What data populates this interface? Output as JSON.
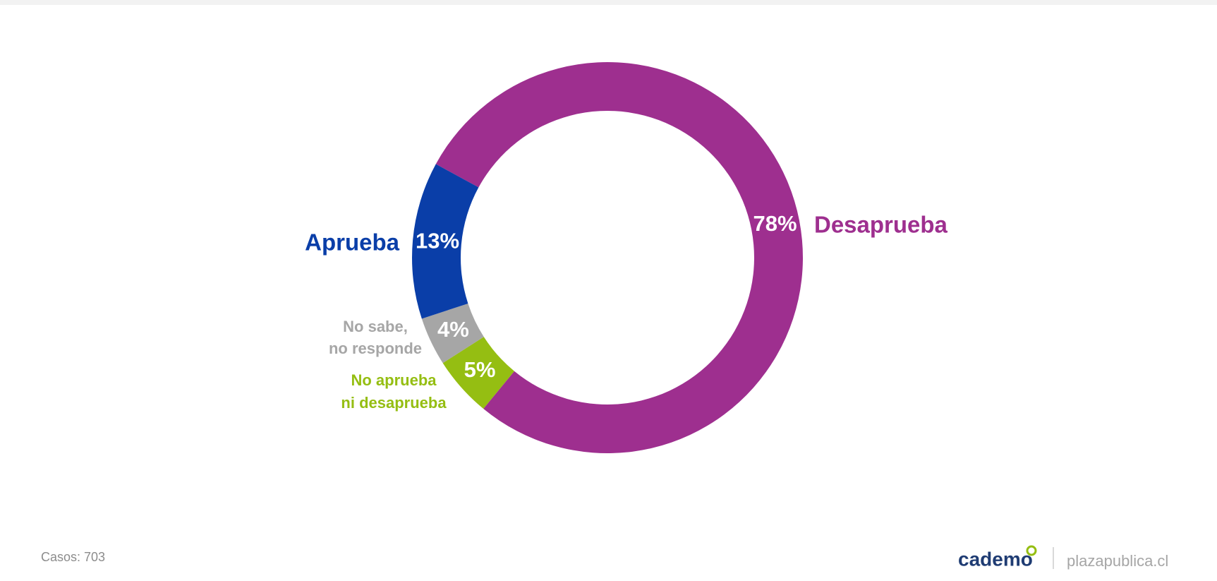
{
  "chart_data": {
    "type": "donut",
    "categories": [
      "Desaprueba",
      "No aprueba\nni desaprueba",
      "No sabe,\nno responde",
      "Aprueba"
    ],
    "values": [
      78,
      5,
      4,
      13
    ],
    "value_labels": [
      "78%",
      "5%",
      "4%",
      "13%"
    ],
    "colors": [
      "#9e2f8f",
      "#95be12",
      "#a6a6a6",
      "#0a3ea8"
    ]
  },
  "footer": {
    "note": "Casos: 703",
    "logo": "cademo",
    "site": "plazapublica.cl"
  }
}
